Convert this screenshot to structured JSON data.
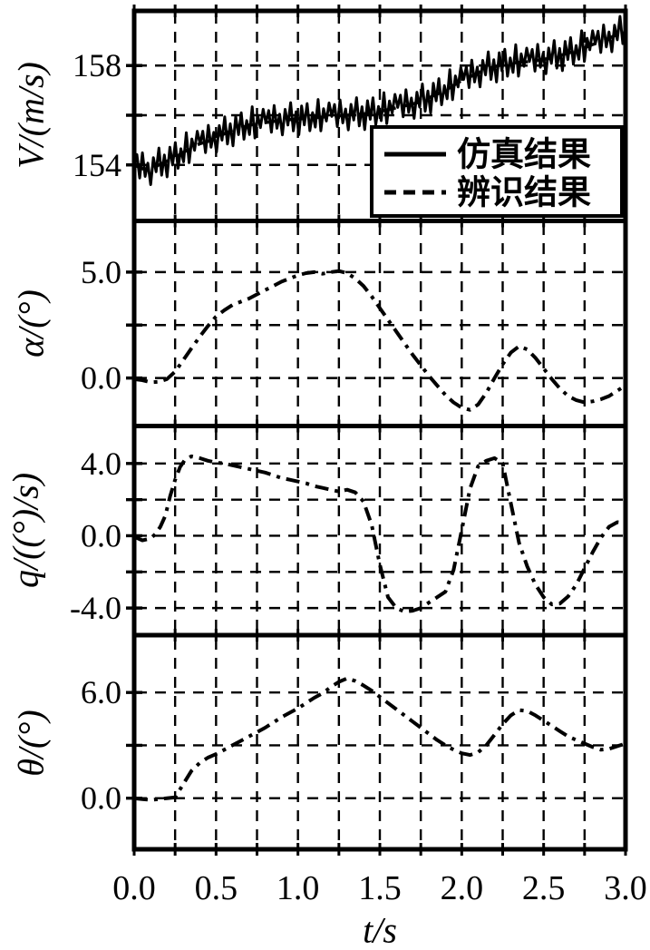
{
  "figure": {
    "background": "#ffffff",
    "ink_color": "#000000",
    "legend": {
      "items": [
        {
          "label": "仿真结果",
          "line_style": "solid"
        },
        {
          "label": "辨识结果",
          "line_style": "dashed"
        }
      ]
    },
    "x_axis": {
      "label": "t/s",
      "min": 0.0,
      "max": 3.0,
      "grid_step": 0.25,
      "tick_labels": [
        {
          "t": 0.0,
          "label": "0.0"
        },
        {
          "t": 0.5,
          "label": "0.5"
        },
        {
          "t": 1.0,
          "label": "1.0"
        },
        {
          "t": 1.5,
          "label": "1.5"
        },
        {
          "t": 2.0,
          "label": "2.0"
        },
        {
          "t": 2.5,
          "label": "2.5"
        },
        {
          "t": 3.0,
          "label": "3.0"
        }
      ]
    }
  },
  "chart_data": [
    {
      "type": "line",
      "name": "airspeed",
      "ylabel": "V/(m/s)",
      "ylim": [
        151.8,
        160.2
      ],
      "yticks": [
        {
          "value": 158,
          "label": "158"
        },
        {
          "value": 154,
          "label": "154"
        }
      ],
      "ygrid": [
        154,
        156,
        158
      ],
      "base_points": [
        [
          0,
          154.0
        ],
        [
          0.05,
          153.85
        ],
        [
          0.1,
          153.8
        ],
        [
          0.15,
          154.0
        ],
        [
          0.2,
          154.15
        ],
        [
          0.25,
          154.3
        ],
        [
          0.3,
          154.5
        ],
        [
          0.35,
          154.7
        ],
        [
          0.4,
          154.85
        ],
        [
          0.45,
          154.95
        ],
        [
          0.5,
          155.1
        ],
        [
          0.55,
          155.25
        ],
        [
          0.6,
          155.4
        ],
        [
          0.65,
          155.5
        ],
        [
          0.7,
          155.6
        ],
        [
          0.75,
          155.65
        ],
        [
          0.8,
          155.7
        ],
        [
          0.85,
          155.75
        ],
        [
          0.9,
          155.8
        ],
        [
          1.0,
          155.85
        ],
        [
          1.1,
          155.9
        ],
        [
          1.2,
          155.95
        ],
        [
          1.3,
          156.0
        ],
        [
          1.4,
          156.05
        ],
        [
          1.5,
          156.15
        ],
        [
          1.6,
          156.3
        ],
        [
          1.7,
          156.45
        ],
        [
          1.75,
          156.55
        ],
        [
          1.8,
          156.7
        ],
        [
          1.85,
          156.85
        ],
        [
          1.9,
          157.0
        ],
        [
          1.95,
          157.2
        ],
        [
          2.0,
          157.4
        ],
        [
          2.05,
          157.55
        ],
        [
          2.1,
          157.7
        ],
        [
          2.15,
          157.85
        ],
        [
          2.2,
          157.95
        ],
        [
          2.25,
          158.05
        ],
        [
          2.3,
          158.1
        ],
        [
          2.4,
          158.15
        ],
        [
          2.45,
          158.2
        ],
        [
          2.5,
          158.25
        ],
        [
          2.55,
          158.3
        ],
        [
          2.6,
          158.4
        ],
        [
          2.65,
          158.5
        ],
        [
          2.7,
          158.6
        ],
        [
          2.75,
          158.72
        ],
        [
          2.8,
          158.85
        ],
        [
          2.85,
          158.95
        ],
        [
          2.9,
          159.1
        ],
        [
          2.95,
          159.25
        ],
        [
          3.0,
          159.4
        ]
      ],
      "series": [
        {
          "name": "仿真结果",
          "style": "noisy",
          "noise_amp": 0.85,
          "noise_samples": 180,
          "noise_pattern": [
            0,
            0.55,
            -0.5,
            0.75,
            -0.35,
            0.3,
            -0.7,
            0.5,
            -0.25,
            0.8,
            -0.55,
            0.35,
            -0.75,
            0.6,
            -0.3,
            0.7,
            -0.6,
            0.25,
            -0.45,
            0.85,
            -0.65,
            0.4,
            -0.2,
            0.65
          ]
        },
        {
          "name": "辨识结果",
          "style": "dashed"
        }
      ]
    },
    {
      "type": "line",
      "name": "angle-of-attack",
      "ylabel": "α/(°)",
      "ylim": [
        -2.2,
        7.35
      ],
      "yticks": [
        {
          "value": 5.0,
          "label": "5.0"
        },
        {
          "value": 0.0,
          "label": "0.0"
        }
      ],
      "ygrid": [
        0,
        2.5,
        5
      ],
      "base_points": [
        [
          0,
          -0.05
        ],
        [
          0.05,
          -0.1
        ],
        [
          0.1,
          -0.2
        ],
        [
          0.15,
          -0.18
        ],
        [
          0.2,
          -0.05
        ],
        [
          0.25,
          0.3
        ],
        [
          0.3,
          0.85
        ],
        [
          0.35,
          1.4
        ],
        [
          0.4,
          1.95
        ],
        [
          0.45,
          2.45
        ],
        [
          0.5,
          2.9
        ],
        [
          0.55,
          3.2
        ],
        [
          0.6,
          3.45
        ],
        [
          0.65,
          3.6
        ],
        [
          0.7,
          3.75
        ],
        [
          0.75,
          3.95
        ],
        [
          0.8,
          4.15
        ],
        [
          0.85,
          4.35
        ],
        [
          0.9,
          4.55
        ],
        [
          0.95,
          4.7
        ],
        [
          1.0,
          4.85
        ],
        [
          1.05,
          4.95
        ],
        [
          1.1,
          5.0
        ],
        [
          1.15,
          4.92
        ],
        [
          1.2,
          5.0
        ],
        [
          1.25,
          5.05
        ],
        [
          1.3,
          4.95
        ],
        [
          1.35,
          4.7
        ],
        [
          1.4,
          4.35
        ],
        [
          1.45,
          3.85
        ],
        [
          1.5,
          3.3
        ],
        [
          1.55,
          2.75
        ],
        [
          1.6,
          2.2
        ],
        [
          1.65,
          1.65
        ],
        [
          1.7,
          1.1
        ],
        [
          1.75,
          0.6
        ],
        [
          1.8,
          0.1
        ],
        [
          1.85,
          -0.35
        ],
        [
          1.9,
          -0.8
        ],
        [
          1.95,
          -1.15
        ],
        [
          2.0,
          -1.4
        ],
        [
          2.05,
          -1.5
        ],
        [
          2.1,
          -1.25
        ],
        [
          2.15,
          -0.7
        ],
        [
          2.2,
          0.0
        ],
        [
          2.25,
          0.65
        ],
        [
          2.3,
          1.2
        ],
        [
          2.35,
          1.5
        ],
        [
          2.4,
          1.35
        ],
        [
          2.45,
          0.95
        ],
        [
          2.5,
          0.45
        ],
        [
          2.55,
          -0.05
        ],
        [
          2.6,
          -0.5
        ],
        [
          2.65,
          -0.85
        ],
        [
          2.7,
          -1.05
        ],
        [
          2.75,
          -1.15
        ],
        [
          2.8,
          -1.1
        ],
        [
          2.85,
          -1.0
        ],
        [
          2.9,
          -0.85
        ],
        [
          2.95,
          -0.6
        ],
        [
          3.0,
          -0.35
        ]
      ],
      "series": [
        {
          "name": "辨识结果",
          "style": "dashdot"
        }
      ]
    },
    {
      "type": "line",
      "name": "pitch-rate",
      "ylabel": "q/((°)/s)",
      "ylim": [
        -5.4,
        6.0
      ],
      "yticks": [
        {
          "value": 4.0,
          "label": "4.0"
        },
        {
          "value": 0.0,
          "label": "0.0"
        },
        {
          "value": -4.0,
          "label": "-4.0"
        }
      ],
      "ygrid": [
        -4,
        -2,
        0,
        2,
        4
      ],
      "base_points": [
        [
          0,
          -0.05
        ],
        [
          0.05,
          -0.25
        ],
        [
          0.1,
          -0.15
        ],
        [
          0.13,
          0.1
        ],
        [
          0.16,
          0.5
        ],
        [
          0.19,
          1.1
        ],
        [
          0.22,
          2.2
        ],
        [
          0.25,
          3.1
        ],
        [
          0.28,
          3.8
        ],
        [
          0.31,
          4.2
        ],
        [
          0.35,
          4.4
        ],
        [
          0.4,
          4.3
        ],
        [
          0.45,
          4.15
        ],
        [
          0.5,
          4.05
        ],
        [
          0.55,
          4.0
        ],
        [
          0.6,
          3.9
        ],
        [
          0.65,
          3.8
        ],
        [
          0.7,
          3.7
        ],
        [
          0.75,
          3.6
        ],
        [
          0.8,
          3.5
        ],
        [
          0.85,
          3.35
        ],
        [
          0.9,
          3.2
        ],
        [
          0.95,
          3.1
        ],
        [
          1.0,
          3.0
        ],
        [
          1.05,
          2.9
        ],
        [
          1.1,
          2.75
        ],
        [
          1.15,
          2.65
        ],
        [
          1.2,
          2.55
        ],
        [
          1.25,
          2.45
        ],
        [
          1.3,
          2.55
        ],
        [
          1.35,
          2.4
        ],
        [
          1.4,
          1.9
        ],
        [
          1.45,
          0.6
        ],
        [
          1.5,
          -1.6
        ],
        [
          1.55,
          -3.4
        ],
        [
          1.6,
          -4.0
        ],
        [
          1.65,
          -4.2
        ],
        [
          1.7,
          -4.15
        ],
        [
          1.75,
          -4.0
        ],
        [
          1.8,
          -3.7
        ],
        [
          1.85,
          -3.4
        ],
        [
          1.9,
          -3.1
        ],
        [
          1.95,
          -1.9
        ],
        [
          2.0,
          0.3
        ],
        [
          2.05,
          2.6
        ],
        [
          2.1,
          3.85
        ],
        [
          2.15,
          4.15
        ],
        [
          2.2,
          4.3
        ],
        [
          2.25,
          4.0
        ],
        [
          2.3,
          1.8
        ],
        [
          2.35,
          -0.4
        ],
        [
          2.4,
          -1.7
        ],
        [
          2.45,
          -2.7
        ],
        [
          2.5,
          -3.4
        ],
        [
          2.55,
          -3.8
        ],
        [
          2.6,
          -3.75
        ],
        [
          2.65,
          -3.35
        ],
        [
          2.7,
          -2.7
        ],
        [
          2.75,
          -1.8
        ],
        [
          2.8,
          -0.9
        ],
        [
          2.85,
          -0.1
        ],
        [
          2.9,
          0.5
        ],
        [
          2.95,
          0.75
        ],
        [
          3.0,
          0.7
        ]
      ],
      "series": [
        {
          "name": "辨识结果",
          "style": "dashdot"
        }
      ]
    },
    {
      "type": "line",
      "name": "pitch-angle",
      "ylabel": "θ/(°)",
      "ylim": [
        -2.9,
        9.15
      ],
      "yticks": [
        {
          "value": 6.0,
          "label": "6.0"
        },
        {
          "value": 0.0,
          "label": "0.0"
        }
      ],
      "ygrid": [
        0,
        3,
        6
      ],
      "base_points": [
        [
          0,
          0.0
        ],
        [
          0.05,
          -0.05
        ],
        [
          0.1,
          -0.1
        ],
        [
          0.15,
          -0.05
        ],
        [
          0.2,
          0.0
        ],
        [
          0.25,
          0.05
        ],
        [
          0.3,
          0.8
        ],
        [
          0.35,
          1.55
        ],
        [
          0.4,
          2.0
        ],
        [
          0.45,
          2.3
        ],
        [
          0.5,
          2.5
        ],
        [
          0.55,
          2.75
        ],
        [
          0.6,
          3.0
        ],
        [
          0.65,
          3.25
        ],
        [
          0.7,
          3.5
        ],
        [
          0.75,
          3.75
        ],
        [
          0.8,
          4.0
        ],
        [
          0.85,
          4.3
        ],
        [
          0.9,
          4.6
        ],
        [
          0.95,
          4.85
        ],
        [
          1.0,
          5.1
        ],
        [
          1.05,
          5.4
        ],
        [
          1.1,
          5.7
        ],
        [
          1.15,
          5.95
        ],
        [
          1.2,
          6.3
        ],
        [
          1.25,
          6.6
        ],
        [
          1.3,
          6.8
        ],
        [
          1.35,
          6.65
        ],
        [
          1.4,
          6.4
        ],
        [
          1.45,
          6.1
        ],
        [
          1.5,
          5.75
        ],
        [
          1.55,
          5.4
        ],
        [
          1.6,
          5.05
        ],
        [
          1.65,
          4.7
        ],
        [
          1.7,
          4.35
        ],
        [
          1.75,
          4.0
        ],
        [
          1.8,
          3.65
        ],
        [
          1.85,
          3.3
        ],
        [
          1.9,
          3.0
        ],
        [
          1.95,
          2.75
        ],
        [
          2.0,
          2.55
        ],
        [
          2.05,
          2.45
        ],
        [
          2.1,
          2.6
        ],
        [
          2.15,
          3.0
        ],
        [
          2.2,
          3.6
        ],
        [
          2.25,
          4.2
        ],
        [
          2.3,
          4.7
        ],
        [
          2.35,
          5.0
        ],
        [
          2.4,
          4.95
        ],
        [
          2.45,
          4.7
        ],
        [
          2.5,
          4.4
        ],
        [
          2.55,
          4.1
        ],
        [
          2.6,
          3.8
        ],
        [
          2.65,
          3.5
        ],
        [
          2.7,
          3.3
        ],
        [
          2.75,
          3.1
        ],
        [
          2.8,
          2.9
        ],
        [
          2.85,
          2.75
        ],
        [
          2.9,
          2.8
        ],
        [
          2.95,
          2.95
        ],
        [
          3.0,
          3.1
        ]
      ],
      "series": [
        {
          "name": "辨识结果",
          "style": "dashdot"
        }
      ]
    }
  ]
}
